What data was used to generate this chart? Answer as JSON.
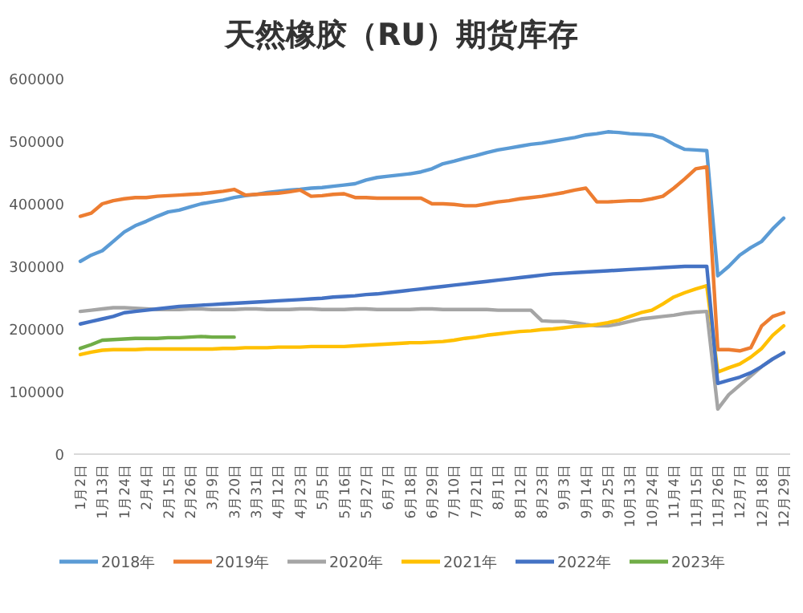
{
  "chart_data": {
    "type": "line",
    "title": "天然橡胶（RU）期货库存",
    "categories": [
      "1月2日",
      null,
      "1月13日",
      null,
      "1月24日",
      null,
      "2月4日",
      null,
      "2月15日",
      null,
      "2月26日",
      null,
      "3月9日",
      null,
      "3月20日",
      null,
      "3月31日",
      null,
      "4月12日",
      null,
      "4月23日",
      null,
      "5月5日",
      null,
      "5月16日",
      null,
      "5月27日",
      null,
      "6月7日",
      null,
      "6月18日",
      null,
      "6月29日",
      null,
      "7月10日",
      null,
      "7月21日",
      null,
      "8月1日",
      null,
      "8月12日",
      null,
      "8月23日",
      null,
      "9月3日",
      null,
      "9月14日",
      null,
      "9月25日",
      null,
      "10月13日",
      null,
      "10月24日",
      null,
      "11月4日",
      null,
      "11月15日",
      null,
      "11月26日",
      null,
      "12月7日",
      null,
      "12月18日",
      null,
      "12月29日"
    ],
    "series": [
      {
        "name": "2018年",
        "color": "#5b9bd5",
        "values": [
          308000,
          318000,
          325000,
          340000,
          355000,
          365000,
          372000,
          380000,
          387000,
          390000,
          395000,
          400000,
          403000,
          406000,
          410000,
          413000,
          415000,
          418000,
          420000,
          422000,
          423000,
          425000,
          426000,
          428000,
          430000,
          432000,
          438000,
          442000,
          444000,
          446000,
          448000,
          451000,
          456000,
          464000,
          468000,
          473000,
          477000,
          482000,
          486000,
          489000,
          492000,
          495000,
          497000,
          500000,
          503000,
          506000,
          510000,
          512000,
          515000,
          514000,
          512000,
          511000,
          510000,
          505000,
          495000,
          487000,
          486000,
          485000,
          285000,
          300000,
          318000,
          330000,
          340000,
          360000,
          377000
        ]
      },
      {
        "name": "2019年",
        "color": "#ed7d31",
        "values": [
          380000,
          385000,
          400000,
          405000,
          408000,
          410000,
          410000,
          412000,
          413000,
          414000,
          415000,
          416000,
          418000,
          420000,
          423000,
          414000,
          415000,
          416000,
          417000,
          419000,
          422000,
          412000,
          413000,
          415000,
          416000,
          410000,
          410000,
          409000,
          409000,
          409000,
          409000,
          409000,
          400000,
          400000,
          399000,
          397000,
          397000,
          400000,
          403000,
          405000,
          408000,
          410000,
          412000,
          415000,
          418000,
          422000,
          425000,
          403000,
          403000,
          404000,
          405000,
          405000,
          408000,
          412000,
          425000,
          440000,
          456000,
          459000,
          167000,
          167000,
          165000,
          170000,
          205000,
          220000,
          226000
        ]
      },
      {
        "name": "2020年",
        "color": "#a5a5a5",
        "values": [
          228000,
          230000,
          232000,
          234000,
          234000,
          233000,
          232000,
          231000,
          231000,
          231000,
          232000,
          232000,
          231000,
          231000,
          231000,
          232000,
          232000,
          231000,
          231000,
          231000,
          232000,
          232000,
          231000,
          231000,
          231000,
          232000,
          232000,
          231000,
          231000,
          231000,
          231000,
          232000,
          232000,
          231000,
          231000,
          231000,
          231000,
          231000,
          230000,
          230000,
          230000,
          230000,
          213000,
          212000,
          212000,
          210000,
          207000,
          205000,
          205000,
          208000,
          212000,
          216000,
          218000,
          220000,
          222000,
          225000,
          227000,
          228000,
          72000,
          95000,
          110000,
          125000,
          140000,
          152000,
          162000
        ]
      },
      {
        "name": "2021年",
        "color": "#ffc000",
        "values": [
          159000,
          163000,
          166000,
          167000,
          167000,
          167000,
          168000,
          168000,
          168000,
          168000,
          168000,
          168000,
          168000,
          169000,
          169000,
          170000,
          170000,
          170000,
          171000,
          171000,
          171000,
          172000,
          172000,
          172000,
          172000,
          173000,
          174000,
          175000,
          176000,
          177000,
          178000,
          178000,
          179000,
          180000,
          182000,
          185000,
          187000,
          190000,
          192000,
          194000,
          196000,
          197000,
          199000,
          200000,
          202000,
          204000,
          205000,
          207000,
          210000,
          214000,
          220000,
          226000,
          230000,
          240000,
          251000,
          258000,
          264000,
          269000,
          131000,
          138000,
          144000,
          155000,
          169000,
          190000,
          205000
        ]
      },
      {
        "name": "2022年",
        "color": "#4472c4",
        "values": [
          208000,
          212000,
          216000,
          220000,
          226000,
          228000,
          230000,
          232000,
          234000,
          236000,
          237000,
          238000,
          239000,
          240000,
          241000,
          242000,
          243000,
          244000,
          245000,
          246000,
          247000,
          248000,
          249000,
          251000,
          252000,
          253000,
          255000,
          256000,
          258000,
          260000,
          262000,
          264000,
          266000,
          268000,
          270000,
          272000,
          274000,
          276000,
          278000,
          280000,
          282000,
          284000,
          286000,
          288000,
          289000,
          290000,
          291000,
          292000,
          293000,
          294000,
          295000,
          296000,
          297000,
          298000,
          299000,
          300000,
          300000,
          300000,
          113000,
          118000,
          123000,
          130000,
          140000,
          152000,
          162000
        ]
      },
      {
        "name": "2023年",
        "color": "#70ad47",
        "values": [
          169000,
          175000,
          182000,
          183000,
          184000,
          185000,
          185000,
          185000,
          186000,
          186000,
          187000,
          188000,
          187000,
          187000,
          187000,
          null,
          null,
          null,
          null,
          null,
          null,
          null,
          null,
          null,
          null,
          null,
          null,
          null,
          null,
          null,
          null,
          null,
          null,
          null,
          null,
          null,
          null,
          null,
          null,
          null,
          null,
          null,
          null,
          null,
          null,
          null,
          null,
          null,
          null,
          null,
          null,
          null,
          null,
          null,
          null,
          null,
          null,
          null,
          null,
          null,
          null,
          null,
          null,
          null,
          null
        ]
      }
    ],
    "ylim": [
      0,
      600000
    ],
    "yticks": [
      0,
      100000,
      200000,
      300000,
      400000,
      500000,
      600000
    ],
    "grid": false,
    "legend": "bottom"
  }
}
